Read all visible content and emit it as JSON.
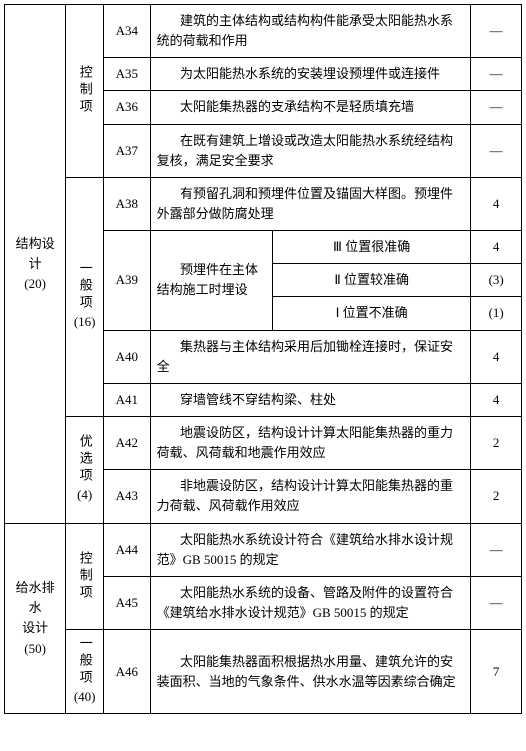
{
  "sections": [
    {
      "title_lines": [
        "结构设计",
        "(20)"
      ],
      "groups": [
        {
          "label": "控制项",
          "sub": null,
          "rows": [
            {
              "code": "A34",
              "desc": "建筑的主体结构或结构构件能承受太阳能热水系统的荷载和作用",
              "score": "—"
            },
            {
              "code": "A35",
              "desc": "为太阳能热水系统的安装埋设预埋件或连接件",
              "score": "—"
            },
            {
              "code": "A36",
              "desc": "太阳能集热器的支承结构不是轻质填充墙",
              "score": "—"
            },
            {
              "code": "A37",
              "desc": "在既有建筑上增设或改造太阳能热水系统经结构复核，满足安全要求",
              "score": "—"
            }
          ]
        },
        {
          "label": "一般项",
          "sub": "(16)",
          "rows": [
            {
              "code": "A38",
              "desc": "有预留孔洞和预埋件位置及锚固大样图。预埋件外露部分做防腐处理",
              "score": "4"
            },
            {
              "code": "A39",
              "desc_left": "预埋件在主体结构施工时埋设",
              "sub_rows": [
                {
                  "label": "Ⅲ 位置很准确",
                  "score": "4"
                },
                {
                  "label": "Ⅱ 位置较准确",
                  "score": "(3)"
                },
                {
                  "label": "Ⅰ 位置不准确",
                  "score": "(1)"
                }
              ]
            },
            {
              "code": "A40",
              "desc": "集热器与主体结构采用后加锄栓连接时，保证安全",
              "score": "4"
            },
            {
              "code": "A41",
              "desc": "穿墙管线不穿结构梁、柱处",
              "score": "4"
            }
          ]
        },
        {
          "label": "优选项",
          "sub": "(4)",
          "rows": [
            {
              "code": "A42",
              "desc": "地震设防区，结构设计计算太阳能集热器的重力荷载、风荷载和地震作用效应",
              "score": "2"
            },
            {
              "code": "A43",
              "desc": "非地震设防区，结构设计计算太阳能集热器的重力荷载、风荷载作用效应",
              "score": "2"
            }
          ]
        }
      ]
    },
    {
      "title_lines": [
        "给水排水",
        "设计",
        "(50)"
      ],
      "groups": [
        {
          "label": "控制项",
          "sub": null,
          "rows": [
            {
              "code": "A44",
              "desc": "太阳能热水系统设计符合《建筑给水排水设计规范》GB 50015 的规定",
              "score": "—"
            },
            {
              "code": "A45",
              "desc": "太阳能热水系统的设备、管路及附件的设置符合《建筑给水排水设计规范》GB 50015 的规定",
              "score": "—"
            }
          ]
        },
        {
          "label": "一般项",
          "sub": "(40)",
          "rows": [
            {
              "code": "A46",
              "desc": "太阳能集热器面积根据热水用量、建筑允许的安装面积、当地的气象条件、供水水温等因素综合确定",
              "score": "7"
            }
          ]
        }
      ]
    }
  ]
}
